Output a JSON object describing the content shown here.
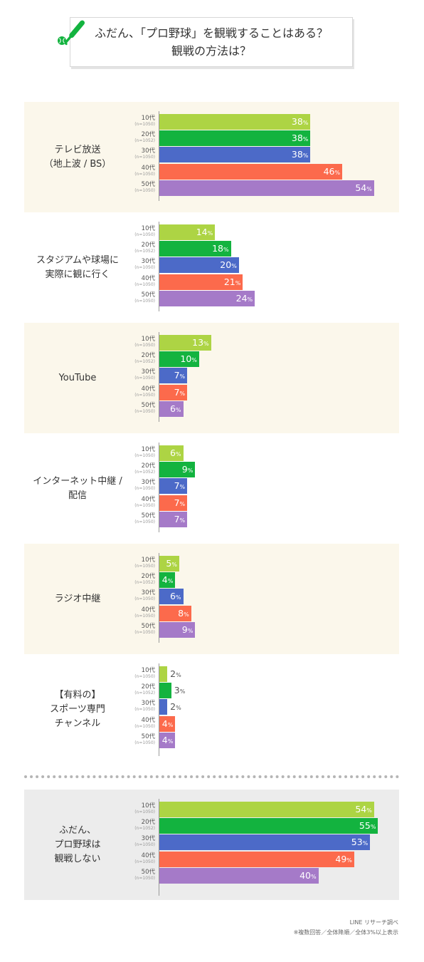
{
  "title": {
    "line1": "ふだん、「プロ野球」を観戦することはある？",
    "line2": "観戦の方法は？"
  },
  "icons": {
    "bat": "baseball-bat-and-ball-icon"
  },
  "colors": {
    "10s": "#add444",
    "20s": "#13b33f",
    "30s": "#4c6ac8",
    "40s": "#fc6a4c",
    "50s": "#a57ac8",
    "panel_beige": "#fbf7eb",
    "panel_gray": "#ececec"
  },
  "chart_data": {
    "type": "bar",
    "orientation": "horizontal",
    "unit": "%",
    "groups_labels": [
      "10代",
      "20代",
      "30代",
      "40代",
      "50代"
    ],
    "groups_n": [
      "(n=1050)",
      "(n=1052)",
      "(n=1050)",
      "(n=1050)",
      "(n=1050)"
    ],
    "categories": [
      {
        "label": [
          "テレビ放送",
          "（地上波 / BS）"
        ],
        "values": [
          38,
          38,
          38,
          46,
          54
        ]
      },
      {
        "label": [
          "スタジアムや球場に",
          "実際に観に行く"
        ],
        "values": [
          14,
          18,
          20,
          21,
          24
        ]
      },
      {
        "label": [
          "YouTube"
        ],
        "values": [
          13,
          10,
          7,
          7,
          6
        ]
      },
      {
        "label": [
          "インターネット中継 /",
          "配信"
        ],
        "values": [
          6,
          9,
          7,
          7,
          7
        ]
      },
      {
        "label": [
          "ラジオ中継"
        ],
        "values": [
          5,
          4,
          6,
          8,
          9
        ]
      },
      {
        "label": [
          "【有料の】",
          "スポーツ専門",
          "チャンネル"
        ],
        "values": [
          2,
          3,
          2,
          4,
          4
        ]
      },
      {
        "label": [
          "ふだん、",
          "プロ野球は",
          "観戦しない"
        ],
        "values": [
          54,
          55,
          53,
          49,
          40
        ]
      }
    ]
  },
  "source": {
    "line1": "LINE リサーチ調べ",
    "line2": "※複数回答／全体降順／全体3%以上表示"
  }
}
